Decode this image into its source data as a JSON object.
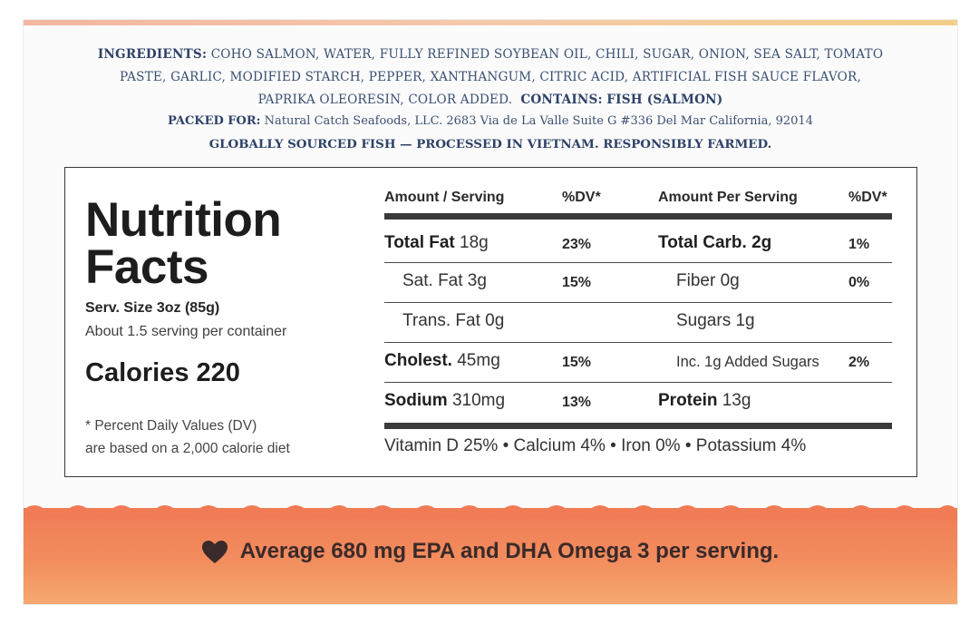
{
  "ingredients": {
    "label": "INGREDIENTS:",
    "line1": "COHO SALMON, WATER, FULLY REFINED SOYBEAN OIL, CHILI, SUGAR, ONION, SEA SALT, TOMATO",
    "line2": "PASTE, GARLIC, MODIFIED STARCH, PEPPER, XANTHANGUM, CITRIC ACID, ARTIFICIAL FISH SAUCE FLAVOR,",
    "line3": "PAPRIKA OLEORESIN, COLOR ADDED.",
    "contains_label": "CONTAINS:",
    "contains_value": "FISH (SALMON)"
  },
  "packed": {
    "label": "PACKED FOR:",
    "value": "Natural Catch Seafoods, LLC. 2683 Via de La Valle Suite G #336 Del Mar California, 92014"
  },
  "sourcing": "GLOBALLY SOURCED FISH — PROCESSED IN VIETNAM. RESPONSIBLY FARMED.",
  "nutrition": {
    "title_line1": "Nutrition",
    "title_line2": "Facts",
    "serving_size": "Serv. Size 3oz (85g)",
    "servings_per_container": "About 1.5 serving per container",
    "calories": "Calories 220",
    "footnote_line1": "* Percent Daily Values (DV)",
    "footnote_line2": "are based on a 2,000 calorie diet",
    "headers": {
      "left_amount": "Amount / Serving",
      "left_dv": "%DV*",
      "right_amount": "Amount Per Serving",
      "right_dv": "%DV*"
    },
    "left_rows": [
      {
        "name": "Total Fat",
        "amount": "18g",
        "dv": "23%"
      },
      {
        "name": "Sat. Fat 3g",
        "amount": "",
        "dv": "15%"
      },
      {
        "name": "Trans. Fat 0g",
        "amount": "",
        "dv": ""
      },
      {
        "name": "Cholest.",
        "amount": "45mg",
        "dv": "15%"
      },
      {
        "name": "Sodium",
        "amount": "310mg",
        "dv": "13%"
      }
    ],
    "right_rows": [
      {
        "name": "Total Carb. 2g",
        "amount": "",
        "dv": "1%"
      },
      {
        "name": "Fiber 0g",
        "amount": "",
        "dv": "0%"
      },
      {
        "name": "Sugars 1g",
        "amount": "",
        "dv": ""
      },
      {
        "name": "Inc. 1g Added Sugars",
        "amount": "",
        "dv": "2%"
      },
      {
        "name": "Protein",
        "amount": "13g",
        "dv": ""
      }
    ],
    "vitamins": "Vitamin D 25% • Calcium 4% • Iron 0% • Potassium 4%"
  },
  "omega": {
    "icon": "heart-icon",
    "text": "Average 680 mg EPA and DHA Omega 3 per serving."
  },
  "colors": {
    "ink": "#3a4f72",
    "banner": "#f28d5e",
    "banner_text": "#3a2a2a"
  }
}
